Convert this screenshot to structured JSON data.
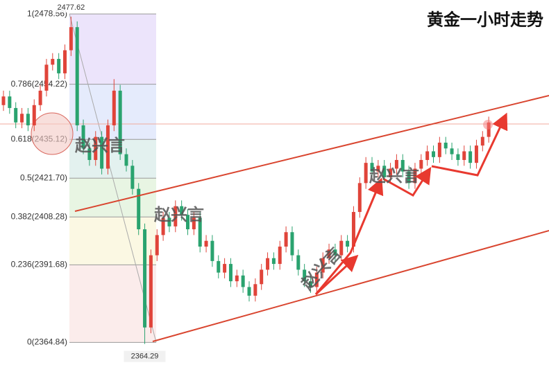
{
  "chart_data": {
    "type": "candlestick",
    "title": "黄金一小时走势",
    "ylim": [
      2357,
      2483.4
    ],
    "up_color": "#e0443a",
    "down_color": "#2aa36f",
    "fib_levels": [
      {
        "value": 2478.56,
        "label": "1(2478.56)"
      },
      {
        "value": 2454.22,
        "label": "0.786(2454.22)"
      },
      {
        "value": 2435.12,
        "label": "0.618(2435.12)"
      },
      {
        "value": 2421.7,
        "label": "0.5(2421.70)"
      },
      {
        "value": 2408.28,
        "label": "0.382(2408.28)"
      },
      {
        "value": 2391.68,
        "label": "0.236(2391.68)"
      },
      {
        "value": 2364.84,
        "label": "0(2364.84)"
      }
    ],
    "high_label": 2477.62,
    "low_label": 2364.29,
    "watermark": "赵兴言",
    "open": [
      2447,
      2450,
      2446,
      2441,
      2444,
      2440,
      2447,
      2452,
      2461,
      2463,
      2458,
      2466,
      2474,
      2440,
      2432,
      2428,
      2436,
      2425,
      2440,
      2452,
      2430,
      2426,
      2418,
      2404,
      2370,
      2395,
      2402,
      2408,
      2405,
      2412,
      2409,
      2404,
      2408,
      2398,
      2400,
      2393,
      2389,
      2392,
      2386,
      2388,
      2384,
      2381,
      2385,
      2390,
      2394,
      2392,
      2398,
      2403,
      2395,
      2390,
      2386,
      2384,
      2389,
      2394,
      2397,
      2395,
      2400,
      2398,
      2410,
      2420,
      2427,
      2424,
      2426,
      2422,
      2425,
      2428,
      2424,
      2420,
      2425,
      2428,
      2431,
      2429,
      2434,
      2432,
      2430,
      2428,
      2431,
      2427,
      2433,
      2436
    ],
    "high": [
      2452,
      2452,
      2448,
      2446,
      2446,
      2449,
      2454,
      2463,
      2465,
      2465,
      2468,
      2477.62,
      2476,
      2442,
      2434,
      2438,
      2438,
      2442,
      2456,
      2454,
      2432,
      2428,
      2420,
      2406,
      2397,
      2404,
      2410,
      2410,
      2414,
      2414,
      2411,
      2410,
      2410,
      2402,
      2402,
      2395,
      2394,
      2394,
      2390,
      2390,
      2386,
      2387,
      2392,
      2396,
      2396,
      2400,
      2405,
      2405,
      2397,
      2392,
      2388,
      2391,
      2396,
      2399,
      2399,
      2402,
      2402,
      2412,
      2422,
      2429,
      2429,
      2428,
      2428,
      2427,
      2430,
      2430,
      2426,
      2427,
      2430,
      2433,
      2433,
      2436,
      2436,
      2434,
      2432,
      2433,
      2433,
      2435,
      2438,
      2443
    ],
    "low": [
      2445,
      2444,
      2439,
      2439,
      2438,
      2438,
      2445,
      2450,
      2459,
      2456,
      2456,
      2464,
      2438,
      2430,
      2426,
      2426,
      2423,
      2423,
      2438,
      2428,
      2424,
      2416,
      2402,
      2364.29,
      2368,
      2393,
      2400,
      2403,
      2403,
      2407,
      2402,
      2402,
      2396,
      2396,
      2391,
      2387,
      2387,
      2384,
      2384,
      2382,
      2379,
      2379,
      2383,
      2388,
      2390,
      2390,
      2396,
      2393,
      2388,
      2384,
      2382,
      2382,
      2387,
      2392,
      2393,
      2393,
      2396,
      2396,
      2408,
      2418,
      2422,
      2422,
      2420,
      2420,
      2423,
      2422,
      2418,
      2418,
      2423,
      2426,
      2427,
      2427,
      2430,
      2428,
      2426,
      2426,
      2425,
      2425,
      2431,
      2434
    ],
    "close": [
      2450,
      2446,
      2441,
      2444,
      2440,
      2447,
      2452,
      2461,
      2463,
      2458,
      2466,
      2474,
      2440,
      2432,
      2428,
      2436,
      2425,
      2440,
      2452,
      2430,
      2426,
      2418,
      2404,
      2370,
      2395,
      2402,
      2408,
      2405,
      2412,
      2409,
      2404,
      2408,
      2398,
      2400,
      2393,
      2389,
      2392,
      2386,
      2388,
      2384,
      2381,
      2385,
      2390,
      2394,
      2392,
      2398,
      2403,
      2395,
      2390,
      2386,
      2384,
      2389,
      2394,
      2397,
      2395,
      2400,
      2398,
      2410,
      2420,
      2427,
      2424,
      2426,
      2422,
      2425,
      2428,
      2424,
      2420,
      2425,
      2428,
      2431,
      2429,
      2434,
      2432,
      2430,
      2428,
      2431,
      2427,
      2433,
      2436,
      2441
    ]
  }
}
